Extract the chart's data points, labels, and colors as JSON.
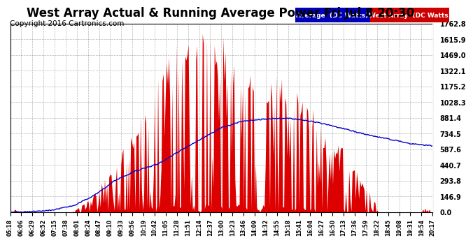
{
  "title": "West Array Actual & Running Average Power Fri Jul 8 20:30",
  "copyright": "Copyright 2016 Cartronics.com",
  "legend_labels": [
    "Average  (DC Watts)",
    "West Array  (DC Watts)"
  ],
  "legend_colors": [
    "#0000cc",
    "#cc0000"
  ],
  "ytick_values": [
    0.0,
    146.9,
    293.8,
    440.7,
    587.6,
    734.5,
    881.4,
    1028.3,
    1175.2,
    1322.1,
    1469.0,
    1615.9,
    1762.8
  ],
  "ymax": 1762.8,
  "ymin": 0.0,
  "background_color": "#ffffff",
  "plot_bg_color": "#ffffff",
  "grid_color": "#888888",
  "bar_color": "#dd0000",
  "avg_line_color": "#0000cc",
  "title_fontsize": 12,
  "copyright_fontsize": 7.5,
  "xtick_labels": [
    "05:18",
    "06:06",
    "06:29",
    "06:52",
    "07:15",
    "07:38",
    "08:01",
    "08:24",
    "08:47",
    "09:10",
    "09:33",
    "09:56",
    "10:19",
    "10:42",
    "11:05",
    "11:28",
    "11:51",
    "12:14",
    "12:37",
    "13:00",
    "13:23",
    "13:46",
    "14:09",
    "14:32",
    "14:55",
    "15:18",
    "15:41",
    "16:04",
    "16:27",
    "16:50",
    "17:13",
    "17:36",
    "17:59",
    "18:22",
    "18:45",
    "19:08",
    "19:31",
    "19:54",
    "20:17"
  ],
  "num_points": 390,
  "avg_line_points": {
    "t": [
      0.0,
      0.05,
      0.1,
      0.15,
      0.2,
      0.25,
      0.3,
      0.35,
      0.4,
      0.45,
      0.5,
      0.55,
      0.6,
      0.65,
      0.7,
      0.75,
      0.8,
      0.85,
      0.9,
      0.95,
      1.0
    ],
    "v": [
      0,
      5,
      20,
      60,
      160,
      300,
      390,
      450,
      570,
      680,
      790,
      850,
      870,
      880,
      860,
      820,
      770,
      720,
      680,
      640,
      620
    ]
  }
}
